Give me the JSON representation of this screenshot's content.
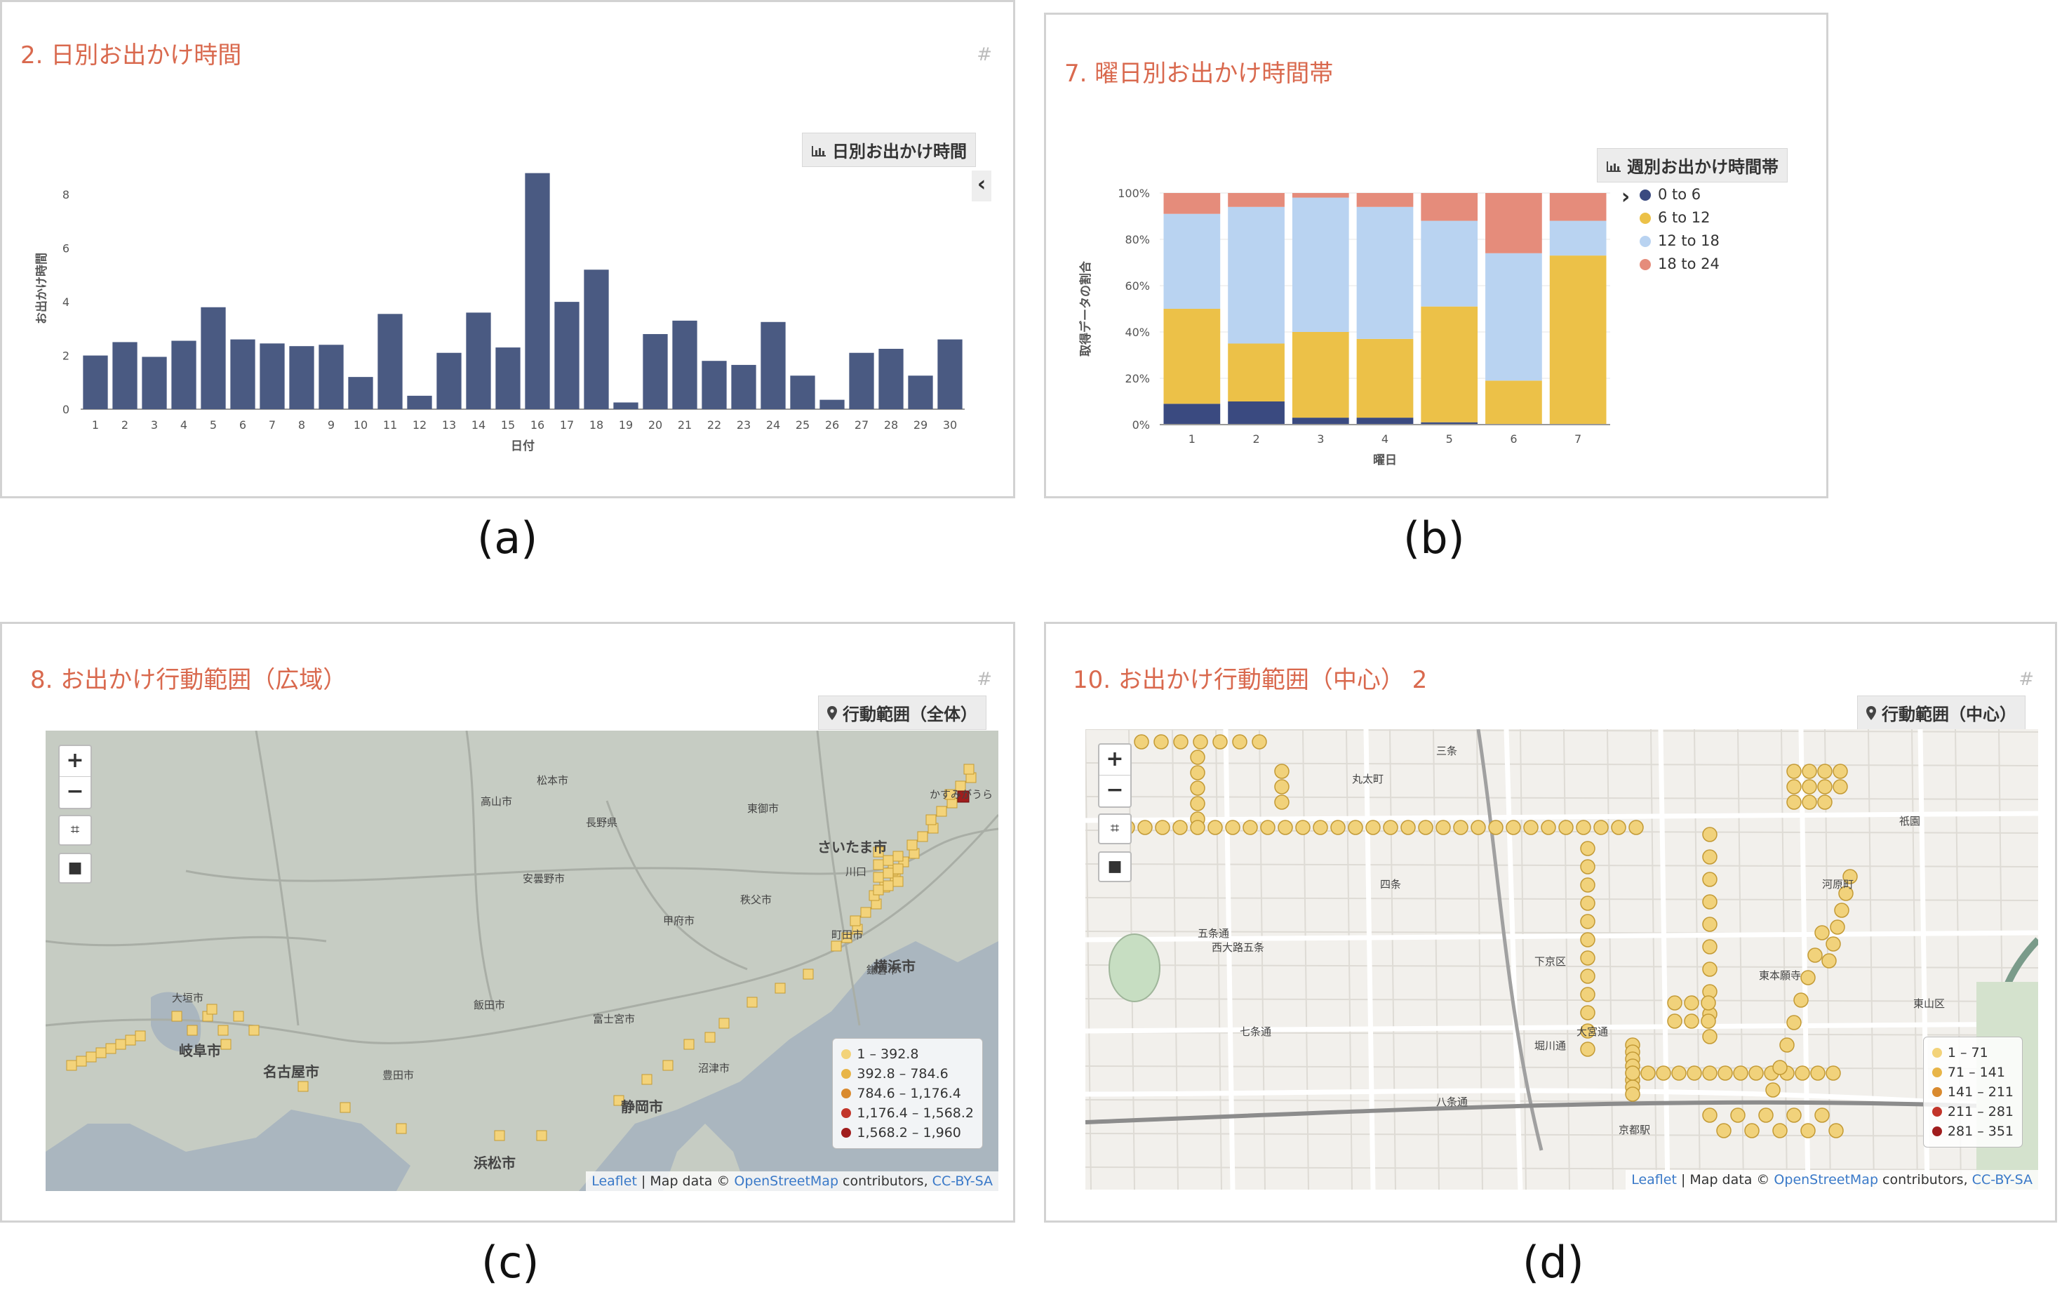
{
  "panels": {
    "a": {
      "title": "2. 日別お出かけ時間",
      "hash": "#",
      "badge": "日別お出かけ時間",
      "badge_icon": "bar-chart-icon",
      "toggle": "‹",
      "caption": "(a)"
    },
    "b": {
      "title": "7. 曜日別お出かけ時間帯",
      "badge": "週別お出かけ時間帯",
      "badge_icon": "bar-chart-icon",
      "toggle": "›",
      "caption": "(b)"
    },
    "c": {
      "title": "8. お出かけ行動範囲（広域）",
      "hash": "#",
      "badge": "行動範囲（全体）",
      "badge_icon": "map-pin-icon",
      "caption": "(c)",
      "zoom_in": "+",
      "zoom_out": "−",
      "legend": [
        {
          "label": "1 – 392.8",
          "color": "#f3d37a"
        },
        {
          "label": "392.8 – 784.6",
          "color": "#e8b548"
        },
        {
          "label": "784.6 – 1,176.4",
          "color": "#d98a2e"
        },
        {
          "label": "1,176.4 – 1,568.2",
          "color": "#c2352a"
        },
        {
          "label": "1,568.2 – 1,960",
          "color": "#a01d1d"
        }
      ],
      "attrib_leaflet": "Leaflet",
      "attrib_text": " | Map data © ",
      "attrib_osm": "OpenStreetMap",
      "attrib_contrib": " contributors, ",
      "attrib_license": "CC-BY-SA",
      "labels": [
        "岐阜市",
        "名古屋市",
        "浜松市",
        "静岡市",
        "横浜市",
        "さいたま市",
        "川口",
        "かすみがうら",
        "豊田市",
        "富士宮市",
        "沼津市",
        "甲府市",
        "飯田市",
        "大垣市",
        "松本市",
        "安曇野市",
        "高山市",
        "長野県",
        "東御市",
        "秩父市",
        "町田市",
        "鎌倉市"
      ]
    },
    "d": {
      "title": "10. お出かけ行動範囲（中心） 2",
      "hash": "#",
      "badge": "行動範囲（中心）",
      "badge_icon": "map-pin-icon",
      "caption": "(d)",
      "zoom_in": "+",
      "zoom_out": "−",
      "legend": [
        {
          "label": "1 – 71",
          "color": "#f3d37a"
        },
        {
          "label": "71 – 141",
          "color": "#e8b548"
        },
        {
          "label": "141 – 211",
          "color": "#d98a2e"
        },
        {
          "label": "211 – 281",
          "color": "#c2352a"
        },
        {
          "label": "281 – 351",
          "color": "#a01d1d"
        }
      ],
      "attrib_leaflet": "Leaflet",
      "attrib_text": " | Map data © ",
      "attrib_osm": "OpenStreetMap",
      "attrib_contrib": " contributors, ",
      "attrib_license": "CC-BY-SA",
      "labels": [
        "五条通",
        "七条通",
        "下京区",
        "東山区",
        "祇園",
        "三条",
        "四条",
        "丸太町",
        "八条通",
        "大宮通",
        "堀川通",
        "河原町",
        "東本願寺",
        "西大路五条",
        "京都駅"
      ]
    }
  },
  "chart_data": [
    {
      "type": "bar",
      "title": "2. 日別お出かけ時間",
      "xlabel": "日付",
      "ylabel": "お出かけ時間",
      "ylim": [
        0,
        9
      ],
      "yticks": [
        0,
        2,
        4,
        6,
        8
      ],
      "bar_color": "#4a5a82",
      "categories": [
        "1",
        "2",
        "3",
        "4",
        "5",
        "6",
        "7",
        "8",
        "9",
        "10",
        "11",
        "12",
        "13",
        "14",
        "15",
        "16",
        "17",
        "18",
        "19",
        "20",
        "21",
        "22",
        "23",
        "24",
        "25",
        "26",
        "27",
        "28",
        "29",
        "30"
      ],
      "values": [
        2.0,
        2.5,
        1.95,
        2.55,
        3.8,
        2.6,
        2.45,
        2.35,
        2.4,
        1.2,
        3.55,
        0.5,
        2.1,
        3.6,
        2.3,
        8.8,
        4.0,
        5.2,
        0.25,
        2.8,
        3.3,
        1.8,
        1.65,
        3.25,
        1.25,
        0.35,
        2.1,
        2.25,
        1.25,
        2.6
      ],
      "grid": false
    },
    {
      "type": "bar",
      "stacked": true,
      "normalized": true,
      "title": "7. 曜日別お出かけ時間帯",
      "xlabel": "曜日",
      "ylabel": "取得データの割合",
      "ylim": [
        0,
        100
      ],
      "yticks": [
        "0%",
        "20%",
        "40%",
        "60%",
        "80%",
        "100%"
      ],
      "categories": [
        "1",
        "2",
        "3",
        "4",
        "5",
        "6",
        "7"
      ],
      "legend_position": "top-right",
      "series": [
        {
          "name": "0 to 6",
          "color": "#3a4a80",
          "values": [
            9,
            10,
            3,
            3,
            1,
            0,
            0
          ]
        },
        {
          "name": "6 to 12",
          "color": "#ecc148",
          "values": [
            41,
            25,
            37,
            34,
            50,
            19,
            73
          ]
        },
        {
          "name": "12 to 18",
          "color": "#b9d3f1",
          "values": [
            41,
            59,
            58,
            57,
            37,
            55,
            15
          ]
        },
        {
          "name": "18 to 24",
          "color": "#e58c7b",
          "values": [
            9,
            6,
            2,
            6,
            12,
            26,
            12
          ]
        }
      ]
    }
  ]
}
